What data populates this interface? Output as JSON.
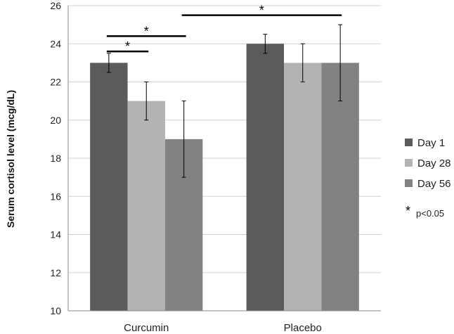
{
  "chart_data": {
    "type": "bar",
    "title": "",
    "xlabel": "",
    "ylabel": "Serum cortisol level (mcg/dL)",
    "ylim": [
      10,
      26
    ],
    "yticks": [
      10,
      12,
      14,
      16,
      18,
      20,
      22,
      24,
      26
    ],
    "grid": true,
    "categories": [
      "Curcumin",
      "Placebo"
    ],
    "series": [
      {
        "name": "Day 1",
        "color": "#5b5b5b",
        "values": [
          23,
          24
        ],
        "errors": [
          0.5,
          0.5
        ]
      },
      {
        "name": "Day 28",
        "color": "#b3b3b3",
        "values": [
          21,
          23
        ],
        "errors": [
          1,
          1
        ]
      },
      {
        "name": "Day 56",
        "color": "#828282",
        "values": [
          19,
          23
        ],
        "errors": [
          2,
          2
        ]
      }
    ],
    "legend_position": "right",
    "significance": [
      {
        "from": [
          "Curcumin",
          "Day 1"
        ],
        "to": [
          "Curcumin",
          "Day 28"
        ],
        "mark": "*"
      },
      {
        "from": [
          "Curcumin",
          "Day 1"
        ],
        "to": [
          "Curcumin",
          "Day 56"
        ],
        "mark": "*"
      },
      {
        "from": [
          "Curcumin",
          "Day 56"
        ],
        "to": [
          "Placebo",
          "Day 56"
        ],
        "mark": "*"
      }
    ],
    "note_star": "*",
    "note_text": "p<0.05"
  }
}
